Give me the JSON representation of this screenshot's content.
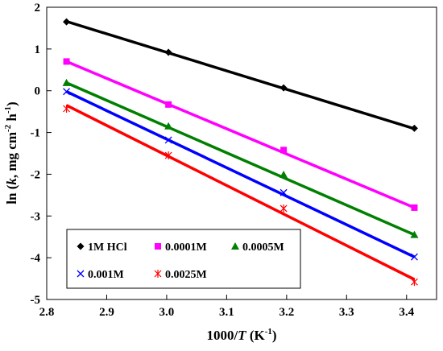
{
  "chart_data": {
    "type": "scatter",
    "xlabel": {
      "prefix": "1000/",
      "var": "T",
      "suffix": " (K",
      "sup": "-1",
      "end": ")"
    },
    "ylabel": {
      "prefix": "ln (",
      "var": "k",
      "mid": ", mg cm",
      "sup1": "-2",
      "gap": " h",
      "sup2": "-1",
      "end": ")"
    },
    "xlim": [
      2.8,
      3.45
    ],
    "ylim": [
      -5,
      2
    ],
    "x_ticks": [
      "2.8",
      "2.9",
      "3.0",
      "3.1",
      "3.2",
      "3.3",
      "3.4"
    ],
    "y_ticks": [
      "2",
      "1",
      "0",
      "-1",
      "-2",
      "-3",
      "-4",
      "-5"
    ],
    "x_tick_values": [
      2.8,
      2.9,
      3.0,
      3.1,
      3.2,
      3.3,
      3.4
    ],
    "y_tick_values": [
      2,
      1,
      0,
      -1,
      -2,
      -3,
      -4,
      -5
    ],
    "grid": false,
    "legend_position": "bottom-left",
    "x": [
      2.833,
      3.003,
      3.195,
      3.413
    ],
    "series": [
      {
        "name": "1M HCl",
        "marker": "diamond",
        "color": "#000000",
        "values": [
          1.65,
          0.92,
          0.07,
          -0.9
        ],
        "fit": [
          1.66,
          -0.91
        ]
      },
      {
        "name": "0.0001M",
        "marker": "square",
        "color": "#ff00ff",
        "values": [
          0.7,
          -0.33,
          -1.42,
          -2.8
        ],
        "fit": [
          0.7,
          -2.8
        ]
      },
      {
        "name": "0.0005M",
        "marker": "triangle",
        "color": "#008000",
        "values": [
          0.19,
          -0.85,
          -2.01,
          -3.45
        ],
        "fit": [
          0.19,
          -3.45
        ]
      },
      {
        "name": "0.001M",
        "marker": "x",
        "color": "#0000ff",
        "values": [
          -0.02,
          -1.18,
          -2.44,
          -3.98
        ],
        "fit": [
          -0.02,
          -3.98
        ]
      },
      {
        "name": "0.0025M",
        "marker": "star",
        "color": "#ff0000",
        "values": [
          -0.43,
          -1.55,
          -2.82,
          -4.58
        ],
        "fit": [
          -0.35,
          -4.52
        ]
      }
    ]
  }
}
